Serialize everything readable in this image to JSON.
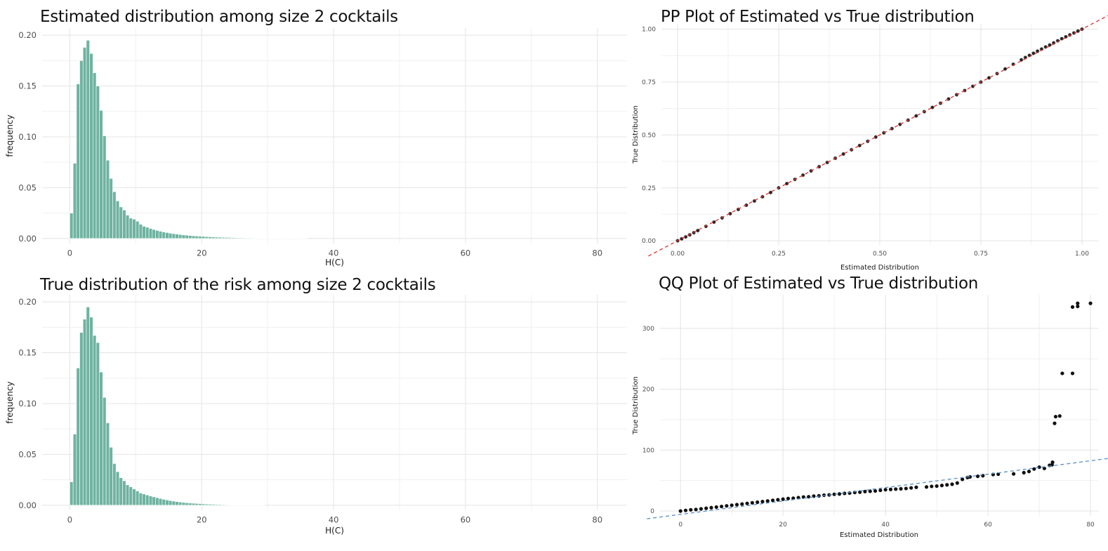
{
  "chart_data": [
    {
      "type": "bar",
      "title": "Estimated distribution among size 2 cocktails",
      "xlabel": "H(C)",
      "ylabel": "frequency",
      "xlim": [
        -4.2,
        84.5
      ],
      "ylim": [
        -0.005,
        0.207
      ],
      "x_ticks": [
        "0",
        "20",
        "40",
        "60",
        "80"
      ],
      "y_ticks": [
        "0.00",
        "0.05",
        "0.10",
        "0.15",
        "0.20"
      ],
      "grid": true,
      "bin_width": 0.5,
      "bin_start": 0,
      "values": [
        0.025,
        0.074,
        0.152,
        0.175,
        0.188,
        0.195,
        0.182,
        0.163,
        0.15,
        0.126,
        0.101,
        0.077,
        0.059,
        0.046,
        0.037,
        0.031,
        0.028,
        0.023,
        0.02,
        0.019,
        0.017,
        0.014,
        0.012,
        0.011,
        0.0098,
        0.0088,
        0.0079,
        0.0071,
        0.0064,
        0.0058,
        0.0052,
        0.0047,
        0.0043,
        0.0039,
        0.0035,
        0.0032,
        0.0029,
        0.0026,
        0.0024,
        0.0022,
        0.002,
        0.0018,
        0.0016,
        0.0015,
        0.0013,
        0.0012,
        0.0011,
        0.001,
        0.0009,
        0.0008,
        0.0007,
        0.0006,
        0.0006,
        0.0005,
        0.0005,
        0.0004,
        0.0004,
        0.0003,
        0.0003,
        0.0003,
        0.0002,
        0.0002,
        0.0002,
        0.0002,
        0.0001,
        0.0001,
        0.0001,
        0.0001,
        0.0001,
        0.0001,
        0.0001,
        0.0001
      ],
      "color": "#6fb3a0"
    },
    {
      "type": "bar",
      "title": "True distribution of the risk among size 2 cocktails",
      "xlabel": "H(C)",
      "ylabel": "frequency",
      "xlim": [
        -4.2,
        84.5
      ],
      "ylim": [
        -0.005,
        0.207
      ],
      "x_ticks": [
        "0",
        "20",
        "40",
        "60",
        "80"
      ],
      "y_ticks": [
        "0.00",
        "0.05",
        "0.10",
        "0.15",
        "0.20"
      ],
      "grid": true,
      "bin_width": 0.5,
      "bin_start": 0,
      "values": [
        0.023,
        0.07,
        0.135,
        0.17,
        0.183,
        0.195,
        0.185,
        0.167,
        0.16,
        0.131,
        0.106,
        0.081,
        0.057,
        0.041,
        0.033,
        0.027,
        0.024,
        0.02,
        0.018,
        0.016,
        0.014,
        0.012,
        0.011,
        0.01,
        0.009,
        0.0082,
        0.0074,
        0.0066,
        0.0058,
        0.0051,
        0.0045,
        0.004,
        0.0035,
        0.0031,
        0.0027,
        0.0024,
        0.0021,
        0.0019,
        0.0017,
        0.0015,
        0.0013,
        0.0011,
        0.001,
        0.0009,
        0.0008,
        0.0007,
        0.0006,
        0.0005,
        0.0004,
        0.0004,
        0.0003,
        0.0003,
        0.0002,
        0.0002,
        0.0002,
        0.0001,
        0.0001,
        0.0001,
        0.0001
      ],
      "color": "#6fb3a0"
    },
    {
      "type": "scatter",
      "title": "PP Plot of Estimated vs True distribution",
      "xlabel": "Estimated Distribution",
      "ylabel": "True Distribution",
      "xlim": [
        -0.04,
        1.04
      ],
      "ylim": [
        -0.02,
        1.025
      ],
      "x_ticks": [
        "0.00",
        "0.25",
        "0.50",
        "0.75",
        "1.00"
      ],
      "y_ticks": [
        "0.00",
        "0.25",
        "0.50",
        "0.75",
        "1.00"
      ],
      "grid": true,
      "reference_line": {
        "slope": 1,
        "intercept": 0,
        "color": "#e0302c",
        "style": "dashed"
      },
      "points": [
        [
          0,
          0
        ],
        [
          0.01,
          0.009
        ],
        [
          0.02,
          0.018
        ],
        [
          0.03,
          0.028
        ],
        [
          0.04,
          0.038
        ],
        [
          0.05,
          0.048
        ],
        [
          0.07,
          0.068
        ],
        [
          0.09,
          0.088
        ],
        [
          0.11,
          0.108
        ],
        [
          0.13,
          0.128
        ],
        [
          0.15,
          0.148
        ],
        [
          0.17,
          0.168
        ],
        [
          0.19,
          0.188
        ],
        [
          0.21,
          0.208
        ],
        [
          0.23,
          0.228
        ],
        [
          0.25,
          0.25
        ],
        [
          0.27,
          0.27
        ],
        [
          0.29,
          0.29
        ],
        [
          0.31,
          0.31
        ],
        [
          0.33,
          0.33
        ],
        [
          0.35,
          0.35
        ],
        [
          0.37,
          0.37
        ],
        [
          0.39,
          0.39
        ],
        [
          0.41,
          0.41
        ],
        [
          0.43,
          0.43
        ],
        [
          0.45,
          0.45
        ],
        [
          0.47,
          0.47
        ],
        [
          0.49,
          0.49
        ],
        [
          0.51,
          0.51
        ],
        [
          0.53,
          0.53
        ],
        [
          0.55,
          0.55
        ],
        [
          0.57,
          0.57
        ],
        [
          0.59,
          0.59
        ],
        [
          0.61,
          0.61
        ],
        [
          0.63,
          0.63
        ],
        [
          0.65,
          0.65
        ],
        [
          0.67,
          0.67
        ],
        [
          0.69,
          0.69
        ],
        [
          0.71,
          0.71
        ],
        [
          0.73,
          0.73
        ],
        [
          0.75,
          0.75
        ],
        [
          0.77,
          0.77
        ],
        [
          0.79,
          0.79
        ],
        [
          0.81,
          0.812
        ],
        [
          0.83,
          0.834
        ],
        [
          0.85,
          0.855
        ],
        [
          0.86,
          0.866
        ],
        [
          0.87,
          0.876
        ],
        [
          0.88,
          0.886
        ],
        [
          0.89,
          0.896
        ],
        [
          0.9,
          0.906
        ],
        [
          0.91,
          0.916
        ],
        [
          0.92,
          0.925
        ],
        [
          0.93,
          0.935
        ],
        [
          0.94,
          0.945
        ],
        [
          0.95,
          0.955
        ],
        [
          0.96,
          0.964
        ],
        [
          0.97,
          0.973
        ],
        [
          0.98,
          0.982
        ],
        [
          0.99,
          0.991
        ],
        [
          1,
          1
        ]
      ],
      "point_color": "#222222"
    },
    {
      "type": "scatter",
      "title": "QQ Plot of Estimated vs True distribution",
      "xlabel": "Estimated Distribution",
      "ylabel": "True Distribution",
      "xlim": [
        -4,
        81.5
      ],
      "ylim": [
        -8,
        355
      ],
      "x_ticks": [
        "0",
        "20",
        "40",
        "60",
        "80"
      ],
      "y_ticks": [
        "0",
        "100",
        "200",
        "300"
      ],
      "grid": true,
      "reference_line": {
        "slope": 1.1,
        "intercept": -5.5,
        "color": "#5b8fc9",
        "style": "dashed"
      },
      "points": [
        [
          0,
          0
        ],
        [
          1,
          1
        ],
        [
          2,
          2
        ],
        [
          3,
          2.5
        ],
        [
          4,
          3.5
        ],
        [
          5,
          4.5
        ],
        [
          6,
          5.5
        ],
        [
          7,
          6.5
        ],
        [
          8,
          7.5
        ],
        [
          9,
          8.5
        ],
        [
          10,
          9.5
        ],
        [
          11,
          10.5
        ],
        [
          12,
          11.5
        ],
        [
          13,
          12.5
        ],
        [
          14,
          13.5
        ],
        [
          15,
          14.5
        ],
        [
          16,
          15.5
        ],
        [
          17,
          16.5
        ],
        [
          18,
          17.5
        ],
        [
          19,
          18.5
        ],
        [
          20,
          19.5
        ],
        [
          21,
          20.5
        ],
        [
          22,
          21
        ],
        [
          23,
          22
        ],
        [
          24,
          23
        ],
        [
          25,
          23.5
        ],
        [
          26,
          24.5
        ],
        [
          27,
          25
        ],
        [
          28,
          26
        ],
        [
          29,
          26.5
        ],
        [
          30,
          27.5
        ],
        [
          31,
          28
        ],
        [
          32,
          29
        ],
        [
          33,
          29.5
        ],
        [
          34,
          30.5
        ],
        [
          35,
          31
        ],
        [
          36,
          32
        ],
        [
          37,
          32.5
        ],
        [
          38,
          33
        ],
        [
          39,
          34
        ],
        [
          40,
          35
        ],
        [
          41,
          35.5
        ],
        [
          42,
          36
        ],
        [
          43,
          36.5
        ],
        [
          44,
          37
        ],
        [
          45,
          38
        ],
        [
          46,
          39
        ],
        [
          48,
          39.5
        ],
        [
          49,
          40.5
        ],
        [
          50,
          41
        ],
        [
          51,
          42
        ],
        [
          52,
          43
        ],
        [
          53,
          44
        ],
        [
          54,
          46
        ],
        [
          55,
          52
        ],
        [
          56,
          55
        ],
        [
          56.5,
          56
        ],
        [
          58,
          57
        ],
        [
          59,
          58
        ],
        [
          61,
          60
        ],
        [
          62,
          60.5
        ],
        [
          65,
          61
        ],
        [
          67,
          63
        ],
        [
          68,
          65
        ],
        [
          69,
          69
        ],
        [
          70,
          72
        ],
        [
          71,
          70
        ],
        [
          72,
          75
        ],
        [
          72.5,
          76
        ],
        [
          72.6,
          80
        ],
        [
          73,
          144
        ],
        [
          73.2,
          155
        ],
        [
          74,
          156
        ],
        [
          74.5,
          226
        ],
        [
          76.5,
          226
        ],
        [
          76.5,
          335
        ],
        [
          77.5,
          336
        ],
        [
          77.5,
          341
        ],
        [
          80,
          341
        ]
      ],
      "point_color": "#111111"
    }
  ]
}
